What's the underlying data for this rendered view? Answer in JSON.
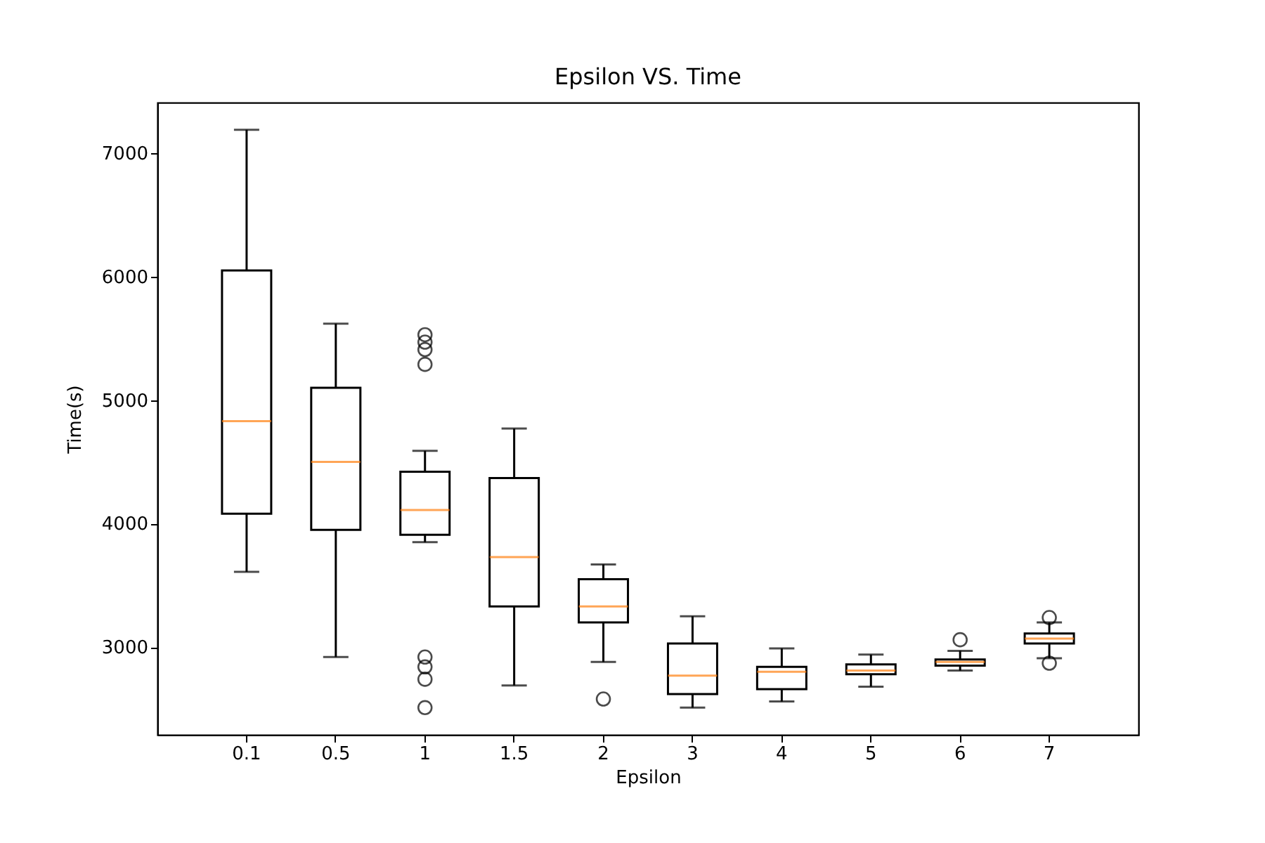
{
  "chart_data": {
    "type": "box",
    "title": "Epsilon VS. Time",
    "xlabel": "Epsilon",
    "ylabel": "Time(s)",
    "categories": [
      "0.1",
      "0.5",
      "1",
      "1.5",
      "2",
      "3",
      "4",
      "5",
      "6",
      "7"
    ],
    "ylim": [
      2290,
      7410
    ],
    "yticks": [
      3000,
      4000,
      5000,
      6000,
      7000
    ],
    "boxes": [
      {
        "low": 3610,
        "q1": 4080,
        "median": 4830,
        "q3": 6050,
        "high": 7190
      },
      {
        "low": 2920,
        "q1": 3950,
        "median": 4500,
        "q3": 5100,
        "high": 5620
      },
      {
        "low": 3850,
        "q1": 3910,
        "median": 4110,
        "q3": 4420,
        "high": 4590,
        "outliers": [
          5530,
          5470,
          5410,
          5290,
          2920,
          2840,
          2740,
          2510
        ]
      },
      {
        "low": 2690,
        "q1": 3330,
        "median": 3730,
        "q3": 4370,
        "high": 4770
      },
      {
        "low": 2880,
        "q1": 3200,
        "median": 3330,
        "q3": 3550,
        "high": 3670,
        "outliers": [
          2580
        ]
      },
      {
        "low": 2510,
        "q1": 2620,
        "median": 2770,
        "q3": 3030,
        "high": 3250
      },
      {
        "low": 2560,
        "q1": 2660,
        "median": 2800,
        "q3": 2840,
        "high": 2990
      },
      {
        "low": 2680,
        "q1": 2780,
        "median": 2810,
        "q3": 2860,
        "high": 2940
      },
      {
        "low": 2810,
        "q1": 2850,
        "median": 2880,
        "q3": 2900,
        "high": 2970,
        "outliers": [
          3060
        ]
      },
      {
        "low": 2910,
        "q1": 3030,
        "median": 3070,
        "q3": 3110,
        "high": 3200,
        "outliers": [
          3240,
          2870
        ]
      }
    ]
  }
}
